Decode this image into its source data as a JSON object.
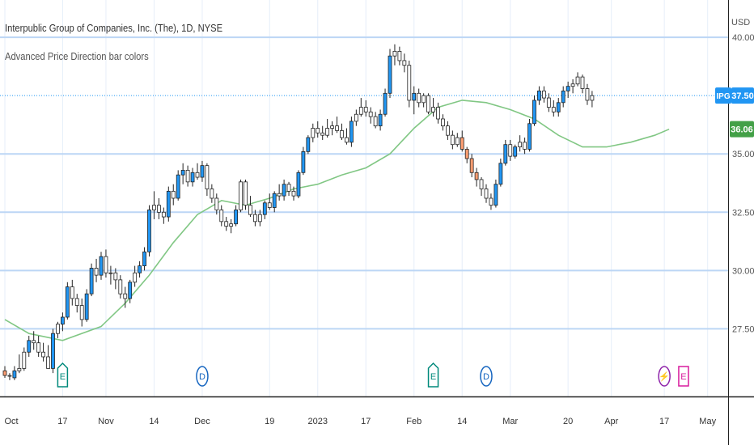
{
  "legend": {
    "title": "Interpublic Group of Companies, Inc. (The), 1D, NYSE",
    "indicator": "Advanced Price Direction bar colors"
  },
  "currency": "USD",
  "chart_data": {
    "type": "candlestick",
    "y_ticks": [
      "27.50",
      "30.00",
      "32.50",
      "35.00",
      "40.00"
    ],
    "y_tick_values": [
      27.5,
      30.0,
      32.5,
      35.0,
      40.0
    ],
    "ylim": [
      24.6,
      41.6
    ],
    "x_ticks": [
      "Oct",
      "17",
      "Nov",
      "14",
      "Dec",
      "19",
      "2023",
      "17",
      "Feb",
      "14",
      "Mar",
      "20",
      "Apr",
      "17",
      "May"
    ],
    "x_tick_bar_index": [
      0,
      12,
      21,
      31,
      41,
      55,
      65,
      75,
      85,
      95,
      105,
      117,
      126,
      137,
      146
    ],
    "price_label": {
      "ticker": "IPG",
      "value": "37.50",
      "y": 37.5,
      "color": "#2196f3"
    },
    "ma_label": {
      "value": "36.06",
      "y": 36.06,
      "color": "#43a047"
    },
    "colors": {
      "up": "#2196f3",
      "down": "#ff9f73",
      "neutral": "#ffffff",
      "ma": "#81c784",
      "grid": "#bcd6f5",
      "axis": "#222222"
    },
    "events": [
      {
        "type": "earnings",
        "label": "E",
        "bar": 12,
        "color": "#00897b",
        "shape": "shield"
      },
      {
        "type": "dividend",
        "label": "D",
        "bar": 41,
        "color": "#1565c0",
        "shape": "circle"
      },
      {
        "type": "earnings",
        "label": "E",
        "bar": 89,
        "color": "#00897b",
        "shape": "shield"
      },
      {
        "type": "dividend",
        "label": "D",
        "bar": 100,
        "color": "#1565c0",
        "shape": "circle"
      },
      {
        "type": "split",
        "label": "⚡",
        "bar": 137,
        "color": "#8e24aa",
        "shape": "circle"
      },
      {
        "type": "earnings",
        "label": "E",
        "bar": 141,
        "color": "#d81b9d",
        "shape": "square"
      }
    ],
    "ma": [
      [
        0,
        27.9
      ],
      [
        5,
        27.3
      ],
      [
        12,
        27.0
      ],
      [
        20,
        27.6
      ],
      [
        25,
        28.6
      ],
      [
        30,
        29.8
      ],
      [
        35,
        31.2
      ],
      [
        40,
        32.4
      ],
      [
        45,
        33.0
      ],
      [
        50,
        32.8
      ],
      [
        55,
        33.1
      ],
      [
        60,
        33.5
      ],
      [
        65,
        33.7
      ],
      [
        70,
        34.1
      ],
      [
        75,
        34.4
      ],
      [
        80,
        35.0
      ],
      [
        85,
        36.1
      ],
      [
        90,
        37.0
      ],
      [
        95,
        37.3
      ],
      [
        100,
        37.2
      ],
      [
        105,
        36.9
      ],
      [
        110,
        36.5
      ],
      [
        115,
        35.8
      ],
      [
        120,
        35.3
      ],
      [
        125,
        35.3
      ],
      [
        130,
        35.5
      ],
      [
        135,
        35.8
      ],
      [
        138,
        36.06
      ]
    ],
    "candles": [
      [
        25.7,
        25.9,
        25.4,
        25.5,
        "down"
      ],
      [
        25.5,
        25.6,
        25.3,
        25.5,
        "neutral"
      ],
      [
        25.4,
        25.9,
        25.3,
        25.7,
        "up"
      ],
      [
        25.7,
        26.4,
        25.6,
        25.8,
        "neutral"
      ],
      [
        25.8,
        26.7,
        25.7,
        26.5,
        "neutral"
      ],
      [
        26.5,
        27.2,
        26.3,
        27.0,
        "up"
      ],
      [
        27.0,
        27.4,
        26.6,
        26.9,
        "neutral"
      ],
      [
        26.9,
        27.2,
        26.3,
        26.5,
        "neutral"
      ],
      [
        26.5,
        26.9,
        26.1,
        26.3,
        "neutral"
      ],
      [
        26.3,
        26.8,
        25.9,
        25.8,
        "neutral"
      ],
      [
        25.8,
        27.5,
        25.6,
        27.3,
        "up"
      ],
      [
        27.3,
        27.8,
        27.1,
        27.7,
        "neutral"
      ],
      [
        27.7,
        28.2,
        27.4,
        28.0,
        "up"
      ],
      [
        28.0,
        29.5,
        27.9,
        29.3,
        "up"
      ],
      [
        29.3,
        29.6,
        28.5,
        28.8,
        "neutral"
      ],
      [
        28.8,
        29.0,
        28.2,
        28.5,
        "neutral"
      ],
      [
        28.5,
        28.8,
        27.6,
        27.9,
        "neutral"
      ],
      [
        27.9,
        29.2,
        27.8,
        29.0,
        "up"
      ],
      [
        29.0,
        30.3,
        28.9,
        30.1,
        "up"
      ],
      [
        30.1,
        30.5,
        29.5,
        29.8,
        "neutral"
      ],
      [
        29.8,
        30.8,
        29.6,
        30.6,
        "up"
      ],
      [
        30.6,
        30.9,
        29.7,
        29.9,
        "neutral"
      ],
      [
        29.9,
        30.2,
        29.4,
        29.9,
        "neutral"
      ],
      [
        29.9,
        30.1,
        29.2,
        29.6,
        "neutral"
      ],
      [
        29.6,
        29.8,
        28.8,
        29.0,
        "neutral"
      ],
      [
        29.0,
        29.3,
        28.4,
        28.8,
        "neutral"
      ],
      [
        28.8,
        29.6,
        28.6,
        29.5,
        "up"
      ],
      [
        29.5,
        30.2,
        29.3,
        29.9,
        "neutral"
      ],
      [
        29.9,
        30.4,
        29.7,
        30.2,
        "up"
      ],
      [
        30.2,
        31.0,
        30.0,
        30.8,
        "up"
      ],
      [
        30.8,
        32.8,
        30.6,
        32.6,
        "up"
      ],
      [
        32.6,
        33.4,
        32.2,
        32.8,
        "neutral"
      ],
      [
        32.8,
        33.1,
        32.2,
        32.5,
        "neutral"
      ],
      [
        32.5,
        32.7,
        32.0,
        32.3,
        "neutral"
      ],
      [
        32.3,
        33.6,
        32.1,
        33.4,
        "up"
      ],
      [
        33.4,
        33.7,
        32.8,
        33.1,
        "neutral"
      ],
      [
        33.1,
        34.3,
        33.0,
        34.1,
        "up"
      ],
      [
        34.1,
        34.6,
        33.7,
        34.3,
        "up"
      ],
      [
        34.3,
        34.5,
        33.6,
        33.8,
        "neutral"
      ],
      [
        33.8,
        34.4,
        33.6,
        34.2,
        "up"
      ],
      [
        34.2,
        34.6,
        33.9,
        34.0,
        "neutral"
      ],
      [
        34.0,
        34.7,
        33.8,
        34.5,
        "up"
      ],
      [
        34.5,
        34.6,
        33.2,
        33.5,
        "neutral"
      ],
      [
        33.5,
        33.7,
        32.9,
        33.1,
        "neutral"
      ],
      [
        33.1,
        33.3,
        32.4,
        32.6,
        "neutral"
      ],
      [
        32.6,
        32.8,
        31.9,
        32.1,
        "neutral"
      ],
      [
        32.1,
        32.3,
        31.7,
        31.9,
        "neutral"
      ],
      [
        31.9,
        32.2,
        31.6,
        32.0,
        "neutral"
      ],
      [
        32.0,
        32.8,
        31.9,
        32.6,
        "up"
      ],
      [
        32.6,
        33.9,
        32.5,
        33.8,
        "neutral"
      ],
      [
        33.8,
        33.9,
        32.6,
        32.8,
        "neutral"
      ],
      [
        32.8,
        33.2,
        32.3,
        32.4,
        "neutral"
      ],
      [
        32.4,
        32.6,
        31.9,
        32.1,
        "neutral"
      ],
      [
        32.1,
        32.6,
        31.9,
        32.4,
        "neutral"
      ],
      [
        32.4,
        33.0,
        32.2,
        32.9,
        "up"
      ],
      [
        32.9,
        33.3,
        32.6,
        32.7,
        "neutral"
      ],
      [
        32.7,
        33.4,
        32.5,
        33.3,
        "up"
      ],
      [
        33.3,
        33.7,
        33.0,
        33.2,
        "neutral"
      ],
      [
        33.2,
        33.9,
        33.0,
        33.7,
        "up"
      ],
      [
        33.7,
        33.8,
        33.2,
        33.4,
        "neutral"
      ],
      [
        33.4,
        33.6,
        33.0,
        33.2,
        "neutral"
      ],
      [
        33.2,
        34.3,
        33.1,
        34.2,
        "up"
      ],
      [
        34.2,
        35.3,
        34.1,
        35.1,
        "up"
      ],
      [
        35.1,
        35.8,
        35.0,
        35.7,
        "up"
      ],
      [
        35.7,
        36.3,
        35.5,
        36.1,
        "neutral"
      ],
      [
        36.1,
        36.4,
        35.7,
        35.9,
        "neutral"
      ],
      [
        35.9,
        36.2,
        35.6,
        35.8,
        "neutral"
      ],
      [
        35.8,
        36.5,
        35.7,
        36.1,
        "neutral"
      ],
      [
        36.1,
        36.4,
        35.8,
        36.2,
        "neutral"
      ],
      [
        36.2,
        36.6,
        35.9,
        36.0,
        "neutral"
      ],
      [
        36.0,
        36.3,
        35.6,
        35.7,
        "neutral"
      ],
      [
        35.7,
        36.1,
        35.4,
        35.5,
        "neutral"
      ],
      [
        35.5,
        36.6,
        35.3,
        36.4,
        "up"
      ],
      [
        36.4,
        36.9,
        36.2,
        36.7,
        "neutral"
      ],
      [
        36.7,
        37.4,
        36.6,
        37.0,
        "neutral"
      ],
      [
        37.0,
        37.3,
        36.6,
        36.8,
        "neutral"
      ],
      [
        36.8,
        37.0,
        36.3,
        36.6,
        "neutral"
      ],
      [
        36.6,
        36.8,
        36.1,
        36.2,
        "neutral"
      ],
      [
        36.2,
        36.9,
        36.0,
        36.7,
        "up"
      ],
      [
        36.7,
        37.8,
        36.6,
        37.6,
        "up"
      ],
      [
        37.6,
        39.5,
        37.4,
        39.2,
        "up"
      ],
      [
        39.2,
        39.7,
        38.8,
        39.4,
        "neutral"
      ],
      [
        39.4,
        39.6,
        38.8,
        39.0,
        "neutral"
      ],
      [
        39.0,
        39.3,
        38.5,
        38.8,
        "neutral"
      ],
      [
        38.8,
        39.0,
        37.0,
        37.3,
        "neutral"
      ],
      [
        37.3,
        37.9,
        36.7,
        37.6,
        "up"
      ],
      [
        37.6,
        37.8,
        37.0,
        37.2,
        "neutral"
      ],
      [
        37.2,
        37.6,
        37.0,
        37.5,
        "neutral"
      ],
      [
        37.5,
        37.6,
        36.7,
        36.8,
        "neutral"
      ],
      [
        36.8,
        37.4,
        36.6,
        37.0,
        "neutral"
      ],
      [
        37.0,
        37.2,
        36.3,
        36.5,
        "neutral"
      ],
      [
        36.5,
        36.7,
        36.0,
        36.2,
        "neutral"
      ],
      [
        36.2,
        36.4,
        35.6,
        35.8,
        "neutral"
      ],
      [
        35.8,
        36.0,
        35.2,
        35.4,
        "neutral"
      ],
      [
        35.4,
        35.9,
        35.3,
        35.7,
        "neutral"
      ],
      [
        35.7,
        36.0,
        35.1,
        35.2,
        "down"
      ],
      [
        35.2,
        35.3,
        34.6,
        34.8,
        "down"
      ],
      [
        34.8,
        35.0,
        34.0,
        34.2,
        "down"
      ],
      [
        34.2,
        34.4,
        33.6,
        33.9,
        "down"
      ],
      [
        33.9,
        34.0,
        33.2,
        33.5,
        "neutral"
      ],
      [
        33.5,
        33.7,
        32.9,
        33.1,
        "neutral"
      ],
      [
        33.1,
        33.3,
        32.6,
        32.8,
        "neutral"
      ],
      [
        32.8,
        33.9,
        32.7,
        33.7,
        "up"
      ],
      [
        33.7,
        34.8,
        33.6,
        34.6,
        "up"
      ],
      [
        34.6,
        35.6,
        34.5,
        35.4,
        "up"
      ],
      [
        35.4,
        35.6,
        34.7,
        34.9,
        "neutral"
      ],
      [
        34.9,
        35.4,
        34.8,
        35.3,
        "up"
      ],
      [
        35.3,
        35.8,
        35.1,
        35.5,
        "neutral"
      ],
      [
        35.5,
        35.7,
        35.0,
        35.2,
        "neutral"
      ],
      [
        35.2,
        36.5,
        35.1,
        36.3,
        "up"
      ],
      [
        36.3,
        37.5,
        36.2,
        37.3,
        "up"
      ],
      [
        37.3,
        37.9,
        37.1,
        37.7,
        "up"
      ],
      [
        37.7,
        37.9,
        37.2,
        37.4,
        "neutral"
      ],
      [
        37.4,
        37.6,
        36.8,
        37.0,
        "neutral"
      ],
      [
        37.0,
        37.3,
        36.6,
        36.8,
        "neutral"
      ],
      [
        36.8,
        37.4,
        36.6,
        37.2,
        "up"
      ],
      [
        37.2,
        37.9,
        37.0,
        37.7,
        "up"
      ],
      [
        37.7,
        38.1,
        37.4,
        37.9,
        "up"
      ],
      [
        37.9,
        38.2,
        37.6,
        38.0,
        "neutral"
      ],
      [
        38.0,
        38.5,
        37.9,
        38.3,
        "neutral"
      ],
      [
        38.3,
        38.4,
        37.6,
        37.8,
        "neutral"
      ],
      [
        37.8,
        38.0,
        37.1,
        37.3,
        "neutral"
      ],
      [
        37.3,
        37.7,
        37.0,
        37.5,
        "neutral"
      ]
    ]
  }
}
